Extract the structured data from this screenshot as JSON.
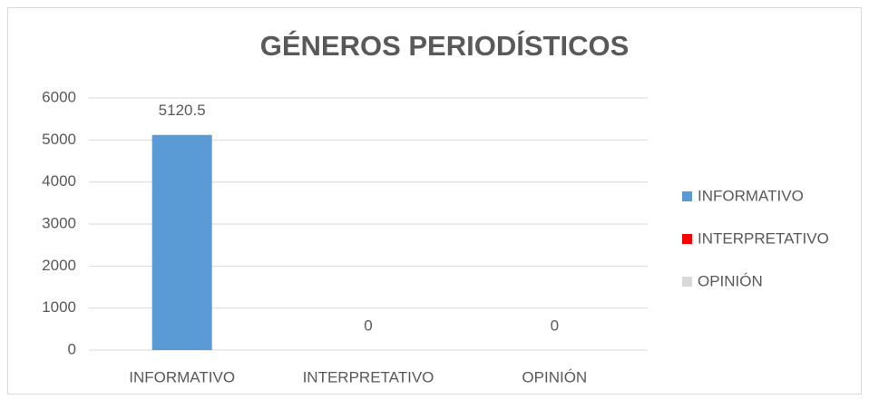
{
  "chart_data": {
    "type": "bar",
    "title": "GÉNEROS PERIODÍSTICOS",
    "categories": [
      "INFORMATIVO",
      "INTERPRETATIVO",
      "OPINIÓN"
    ],
    "values": [
      5120.5,
      0,
      0
    ],
    "colors": [
      "#5b9bd5",
      "#ff0000",
      "#d9d9d9"
    ],
    "ylim": [
      0,
      6000
    ],
    "yticks": [
      0,
      1000,
      2000,
      3000,
      4000,
      5000,
      6000
    ],
    "grid": true,
    "legend": "right"
  }
}
